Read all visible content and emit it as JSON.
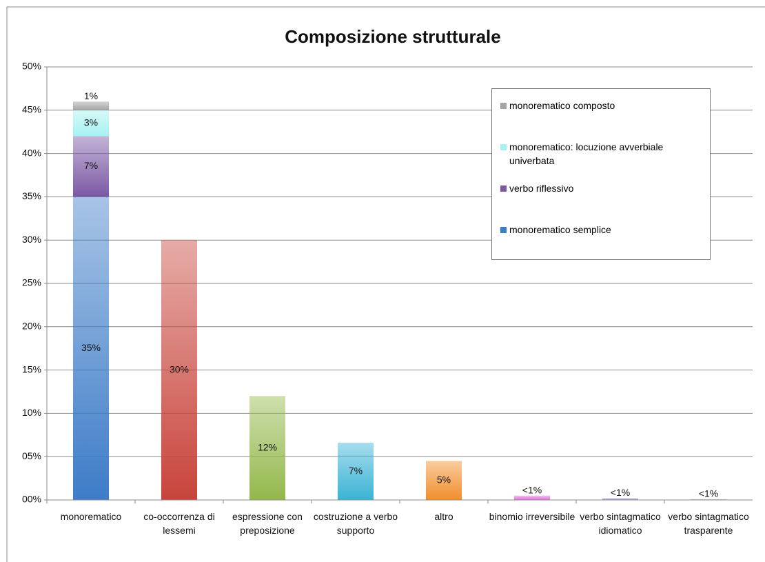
{
  "chart_data": {
    "type": "bar",
    "stacked": true,
    "title": "Composizione strutturale",
    "categories": [
      "monorematico",
      "co-occorrenza di lessemi",
      "espressione con preposizione",
      "costruzione a verbo supporto",
      "altro",
      "binomio irreversibile",
      "verbo sintagmatico idiomatico",
      "verbo sintagmatico trasparente"
    ],
    "series": [
      {
        "name": "monorematico semplice",
        "color": "#3d7cc7",
        "values": [
          35,
          null,
          null,
          null,
          null,
          null,
          null,
          null
        ],
        "value_labels": [
          "35%",
          null,
          null,
          null,
          null,
          null,
          null,
          null
        ]
      },
      {
        "name": "verbo riflessivo",
        "color": "#7a58a4",
        "values": [
          7,
          null,
          null,
          null,
          null,
          null,
          null,
          null
        ],
        "value_labels": [
          "7%",
          null,
          null,
          null,
          null,
          null,
          null,
          null
        ]
      },
      {
        "name": "monorematico: locuzione avverbiale univerbata",
        "color": "#a6f1f1",
        "values": [
          3,
          null,
          null,
          null,
          null,
          null,
          null,
          null
        ],
        "value_labels": [
          "3%",
          null,
          null,
          null,
          null,
          null,
          null,
          null
        ]
      },
      {
        "name": "monorematico composto",
        "color": "#a3a3a3",
        "values": [
          1,
          null,
          null,
          null,
          null,
          null,
          null,
          null
        ],
        "value_labels": [
          "1%",
          null,
          null,
          null,
          null,
          null,
          null,
          null
        ]
      },
      {
        "colors": [
          null,
          "#c8443b",
          "#93b84b",
          "#3ab3d5",
          "#f28e2b",
          "#e070de",
          "#9a98cc",
          "#b4bcd8"
        ],
        "values": [
          null,
          30,
          12,
          6.6,
          4.5,
          0.5,
          0.2,
          0.1
        ],
        "value_labels": [
          null,
          "30%",
          "12%",
          "7%",
          "5%",
          "<1%",
          "<1%",
          "<1%"
        ]
      }
    ],
    "ylim": [
      0,
      50
    ],
    "yticks": [
      {
        "value": 0,
        "label": "00%"
      },
      {
        "value": 5,
        "label": "05%"
      },
      {
        "value": 10,
        "label": "10%"
      },
      {
        "value": 15,
        "label": "15%"
      },
      {
        "value": 20,
        "label": "20%"
      },
      {
        "value": 25,
        "label": "25%"
      },
      {
        "value": 30,
        "label": "30%"
      },
      {
        "value": 35,
        "label": "35%"
      },
      {
        "value": 40,
        "label": "40%"
      },
      {
        "value": 45,
        "label": "45%"
      },
      {
        "value": 50,
        "label": "50%"
      }
    ],
    "grid": true,
    "legend": "upper right"
  }
}
